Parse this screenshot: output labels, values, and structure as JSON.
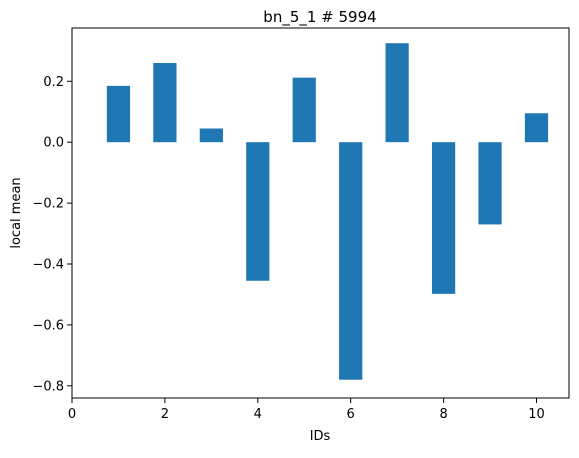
{
  "chart_data": {
    "type": "bar",
    "title": "bn_5_1 # 5994",
    "xlabel": "IDs",
    "ylabel": "local mean",
    "x": [
      1,
      2,
      3,
      4,
      5,
      6,
      7,
      8,
      9,
      10
    ],
    "values": [
      0.185,
      0.26,
      0.045,
      -0.455,
      0.212,
      -0.78,
      0.325,
      -0.498,
      -0.27,
      0.095
    ],
    "bar_width": 0.5,
    "xlim": [
      0,
      10.7
    ],
    "ylim": [
      -0.84,
      0.375
    ],
    "xticks": [
      0,
      2,
      4,
      6,
      8,
      10
    ],
    "xtick_labels": [
      "0",
      "2",
      "4",
      "6",
      "8",
      "10"
    ],
    "yticks": [
      0.2,
      0.0,
      -0.2,
      -0.4,
      -0.6,
      -0.8
    ],
    "ytick_labels": [
      "0.2",
      "0.0",
      "−0.2",
      "−0.4",
      "−0.6",
      "−0.8"
    ],
    "grid": false,
    "bar_color": "#1f77b4"
  }
}
